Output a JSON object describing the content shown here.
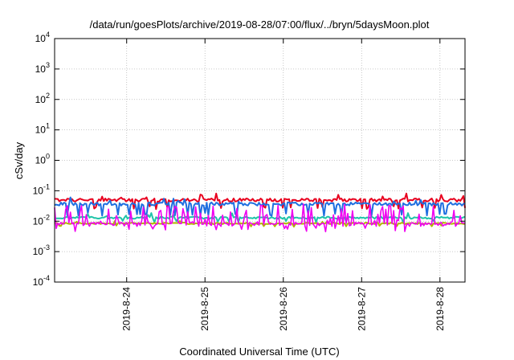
{
  "chart_data": {
    "type": "line",
    "title": "/data/run/goesPlots/archive/2019-08-28/07:00/flux/../bryn/5daysMoon.plot",
    "xlabel": "Coordinated Universal Time (UTC)",
    "ylabel": "cSv/day",
    "yscale": "log",
    "ylim": [
      0.0001,
      10000
    ],
    "xlim": [
      23.08,
      28.32
    ],
    "grid": true,
    "x_ticks": [
      {
        "label": "2019-8-24",
        "value": 24
      },
      {
        "label": "2019-8-25",
        "value": 25
      },
      {
        "label": "2019-8-26",
        "value": 26
      },
      {
        "label": "2019-8-27",
        "value": 27
      },
      {
        "label": "2019-8-28",
        "value": 28
      }
    ],
    "y_ticks": [
      {
        "base": "10",
        "exp": "-4",
        "value": 0.0001
      },
      {
        "base": "10",
        "exp": "-3",
        "value": 0.001
      },
      {
        "base": "10",
        "exp": "-2",
        "value": 0.01
      },
      {
        "base": "10",
        "exp": "-1",
        "value": 0.1
      },
      {
        "base": "10",
        "exp": "0",
        "value": 1
      },
      {
        "base": "10",
        "exp": "1",
        "value": 10
      },
      {
        "base": "10",
        "exp": "2",
        "value": 100
      },
      {
        "base": "10",
        "exp": "3",
        "value": 1000
      },
      {
        "base": "10",
        "exp": "4",
        "value": 10000
      }
    ],
    "series": [
      {
        "color": "#e8001e",
        "base": 0.05,
        "lowChance": 0.08,
        "lowFactor": 0.55,
        "spikeChance": 0.07,
        "spikeFactor": 1.6,
        "jitter": 0.12
      },
      {
        "color": "#1f6fe0",
        "base": 0.037,
        "lowChance": 0.12,
        "lowFactor": 0.45,
        "spikeChance": 0.07,
        "spikeFactor": 1.7,
        "jitter": 0.12
      },
      {
        "color": "#1fc4a8",
        "base": 0.013,
        "lowChance": 0.05,
        "lowFactor": 0.75,
        "spikeChance": 0.03,
        "spikeFactor": 1.4,
        "jitter": 0.08
      },
      {
        "color": "#b0b800",
        "base": 0.0085,
        "lowChance": 0.05,
        "lowFactor": 0.8,
        "spikeChance": 0.02,
        "spikeFactor": 1.3,
        "jitter": 0.06
      },
      {
        "color": "#f000f0",
        "base": 0.008,
        "lowChance": 0.06,
        "lowFactor": 0.65,
        "spikeChance": 0.32,
        "spikeFactor": 4.5,
        "jitter": 0.15
      }
    ],
    "n_points": 260
  }
}
